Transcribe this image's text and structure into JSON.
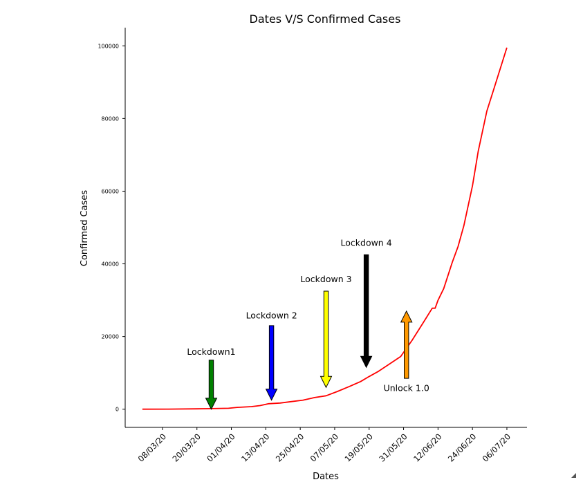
{
  "chart_data": {
    "type": "line",
    "title": "Dates V/S Confirmed Cases",
    "xlabel": "Dates",
    "ylabel": "Confirmed Cases",
    "x_start": "2020-03-01",
    "x_end": "2020-07-06",
    "xlim": [
      "2020-02-24",
      "2020-07-13"
    ],
    "ylim": [
      -5000,
      105000
    ],
    "x_ticks": [
      {
        "date": "2020-03-08",
        "label": "08/03/20"
      },
      {
        "date": "2020-03-20",
        "label": "20/03/20"
      },
      {
        "date": "2020-04-01",
        "label": "01/04/20"
      },
      {
        "date": "2020-04-13",
        "label": "13/04/20"
      },
      {
        "date": "2020-04-25",
        "label": "25/04/20"
      },
      {
        "date": "2020-05-07",
        "label": "07/05/20"
      },
      {
        "date": "2020-05-19",
        "label": "19/05/20"
      },
      {
        "date": "2020-05-31",
        "label": "31/05/20"
      },
      {
        "date": "2020-06-12",
        "label": "12/06/20"
      },
      {
        "date": "2020-06-24",
        "label": "24/06/20"
      },
      {
        "date": "2020-07-06",
        "label": "06/07/20"
      }
    ],
    "y_ticks": [
      0,
      20000,
      40000,
      60000,
      80000,
      100000
    ],
    "grid": false,
    "series": [
      {
        "color": "#ff0000",
        "points": [
          [
            "2020-03-01",
            0
          ],
          [
            "2020-03-10",
            20
          ],
          [
            "2020-03-20",
            100
          ],
          [
            "2020-03-25",
            150
          ],
          [
            "2020-03-31",
            250
          ],
          [
            "2020-04-03",
            500
          ],
          [
            "2020-04-08",
            700
          ],
          [
            "2020-04-11",
            1000
          ],
          [
            "2020-04-14",
            1500
          ],
          [
            "2020-04-18",
            1700
          ],
          [
            "2020-04-22",
            2100
          ],
          [
            "2020-04-26",
            2500
          ],
          [
            "2020-04-30",
            3200
          ],
          [
            "2020-05-04",
            3700
          ],
          [
            "2020-05-08",
            4900
          ],
          [
            "2020-05-12",
            6200
          ],
          [
            "2020-05-16",
            7600
          ],
          [
            "2020-05-19",
            9000
          ],
          [
            "2020-05-22",
            10300
          ],
          [
            "2020-05-26",
            12400
          ],
          [
            "2020-05-30",
            14500
          ],
          [
            "2020-06-03",
            19000
          ],
          [
            "2020-06-07",
            24000
          ],
          [
            "2020-06-10",
            27800
          ],
          [
            "2020-06-11",
            27800
          ],
          [
            "2020-06-12",
            30000
          ],
          [
            "2020-06-14",
            33200
          ],
          [
            "2020-06-17",
            40500
          ],
          [
            "2020-06-19",
            44800
          ],
          [
            "2020-06-21",
            50500
          ],
          [
            "2020-06-24",
            61500
          ],
          [
            "2020-06-26",
            71000
          ],
          [
            "2020-06-29",
            82000
          ],
          [
            "2020-07-02",
            89500
          ],
          [
            "2020-07-06",
            99500
          ]
        ]
      }
    ],
    "annotations": [
      {
        "text": "Lockdown1",
        "date": "2020-03-25",
        "direction": "down",
        "arrow_from": 13500,
        "arrow_to": 0,
        "label_y": 15000,
        "color": "#008000"
      },
      {
        "text": "Lockdown 2",
        "date": "2020-04-15",
        "direction": "down",
        "arrow_from": 23000,
        "arrow_to": 2500,
        "label_y": 25000,
        "color": "#0000ff"
      },
      {
        "text": "Lockdown 3",
        "date": "2020-05-04",
        "direction": "down",
        "arrow_from": 32500,
        "arrow_to": 6000,
        "label_y": 35000,
        "color": "#ffff00"
      },
      {
        "text": "Lockdown 4",
        "date": "2020-05-18",
        "direction": "down",
        "arrow_from": 42500,
        "arrow_to": 11500,
        "label_y": 45000,
        "color": "#000000"
      },
      {
        "text": "Unlock 1.0",
        "date": "2020-06-01",
        "direction": "up",
        "arrow_from": 8500,
        "arrow_to": 27000,
        "label_y": 5000,
        "color": "#ff9900"
      }
    ]
  }
}
